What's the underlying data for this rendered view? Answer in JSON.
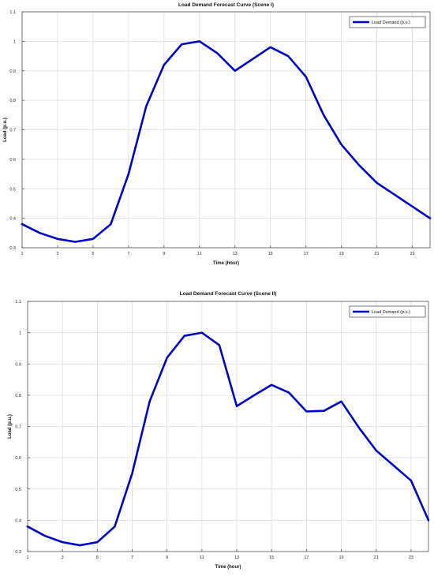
{
  "chart_data": [
    {
      "type": "line",
      "title": "Load Demand Forecast Curve (Scene I)",
      "xlabel": "Time (hour)",
      "ylabel": "Load (p.u.)",
      "xlim": [
        1,
        24
      ],
      "ylim": [
        0.3,
        1.1
      ],
      "x_ticks": [
        1,
        3,
        5,
        7,
        9,
        11,
        13,
        15,
        17,
        19,
        21,
        23
      ],
      "y_ticks": [
        0.3,
        0.4,
        0.5,
        0.6,
        0.7,
        0.8,
        0.9,
        1.0,
        1.1
      ],
      "y_tick_labels": [
        "0.3",
        "0.4",
        "0.5",
        "0.6",
        "0.7",
        "0.8",
        "0.9",
        "1",
        "1.1"
      ],
      "grid": true,
      "legend_position": "top-right",
      "series": [
        {
          "name": "Load Demand (p.u.)",
          "color": "#0000cc",
          "x": [
            1,
            2,
            3,
            4,
            5,
            6,
            7,
            8,
            9,
            10,
            11,
            12,
            13,
            14,
            15,
            16,
            17,
            18,
            19,
            20,
            21,
            22,
            23,
            24
          ],
          "values": [
            0.38,
            0.35,
            0.33,
            0.32,
            0.33,
            0.38,
            0.55,
            0.78,
            0.92,
            0.99,
            1.0,
            0.96,
            0.9,
            0.94,
            0.98,
            0.95,
            0.88,
            0.75,
            0.65,
            0.58,
            0.52,
            0.48,
            0.44,
            0.4
          ]
        }
      ]
    },
    {
      "type": "line",
      "title": "Load Demand Forecast Curve (Scene II)",
      "xlabel": "Time (hour)",
      "ylabel": "Load (p.u.)",
      "xlim": [
        1,
        24
      ],
      "ylim": [
        0.3,
        1.1
      ],
      "x_ticks": [
        1,
        3,
        5,
        7,
        9,
        11,
        13,
        15,
        17,
        19,
        21,
        23
      ],
      "y_ticks": [
        0.3,
        0.4,
        0.5,
        0.6,
        0.7,
        0.8,
        0.9,
        1.0,
        1.1
      ],
      "y_tick_labels": [
        "0.3",
        "0.4",
        "0.5",
        "0.6",
        "0.7",
        "0.8",
        "0.9",
        "1",
        "1.1"
      ],
      "grid": true,
      "legend_position": "top-right",
      "series": [
        {
          "name": "Load Demand (p.u.)",
          "color": "#0000cc",
          "x": [
            1,
            2,
            3,
            4,
            5,
            6,
            7,
            8,
            9,
            10,
            11,
            12,
            13,
            14,
            15,
            16,
            17,
            18,
            19,
            20,
            21,
            22,
            23,
            24
          ],
          "values": [
            0.38,
            0.35,
            0.33,
            0.32,
            0.33,
            0.38,
            0.55,
            0.78,
            0.92,
            0.99,
            1.0,
            0.96,
            0.765,
            0.8,
            0.833,
            0.808,
            0.748,
            0.75,
            0.78,
            0.697,
            0.623,
            0.575,
            0.527,
            0.4
          ]
        }
      ]
    }
  ]
}
